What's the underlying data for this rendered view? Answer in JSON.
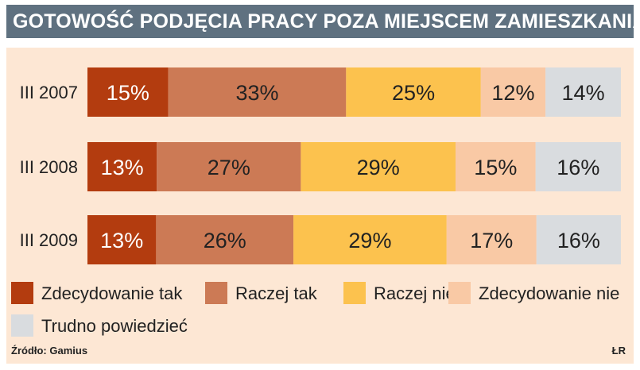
{
  "chart_data": {
    "type": "bar",
    "orientation": "horizontal",
    "stacked": true,
    "title": "GOTOWOŚĆ PODJĘCIA PRACY POZA MIEJSCEM ZAMIESZKANIA",
    "categories": [
      "III 2007",
      "III 2008",
      "III 2009"
    ],
    "series": [
      {
        "name": "Zdecydowanie tak",
        "color": "#b33c0f",
        "values": [
          15,
          13,
          13
        ]
      },
      {
        "name": "Raczej tak",
        "color": "#cc7a55",
        "values": [
          33,
          27,
          26
        ]
      },
      {
        "name": "Raczej nie",
        "color": "#fcc24e",
        "values": [
          25,
          29,
          29
        ]
      },
      {
        "name": "Zdecydowanie nie",
        "color": "#f9c9a5",
        "values": [
          12,
          15,
          17
        ]
      },
      {
        "name": "Trudno powiedzieć",
        "color": "#d9dcdf",
        "values": [
          14,
          16,
          16
        ]
      }
    ],
    "value_suffix": "%",
    "legend_position": "bottom",
    "grid": false
  },
  "source": "Źródło: Gamius",
  "credit": "ŁR",
  "colors": {
    "title_bar": "#5f7180",
    "panel_background": "#fde7d4"
  }
}
